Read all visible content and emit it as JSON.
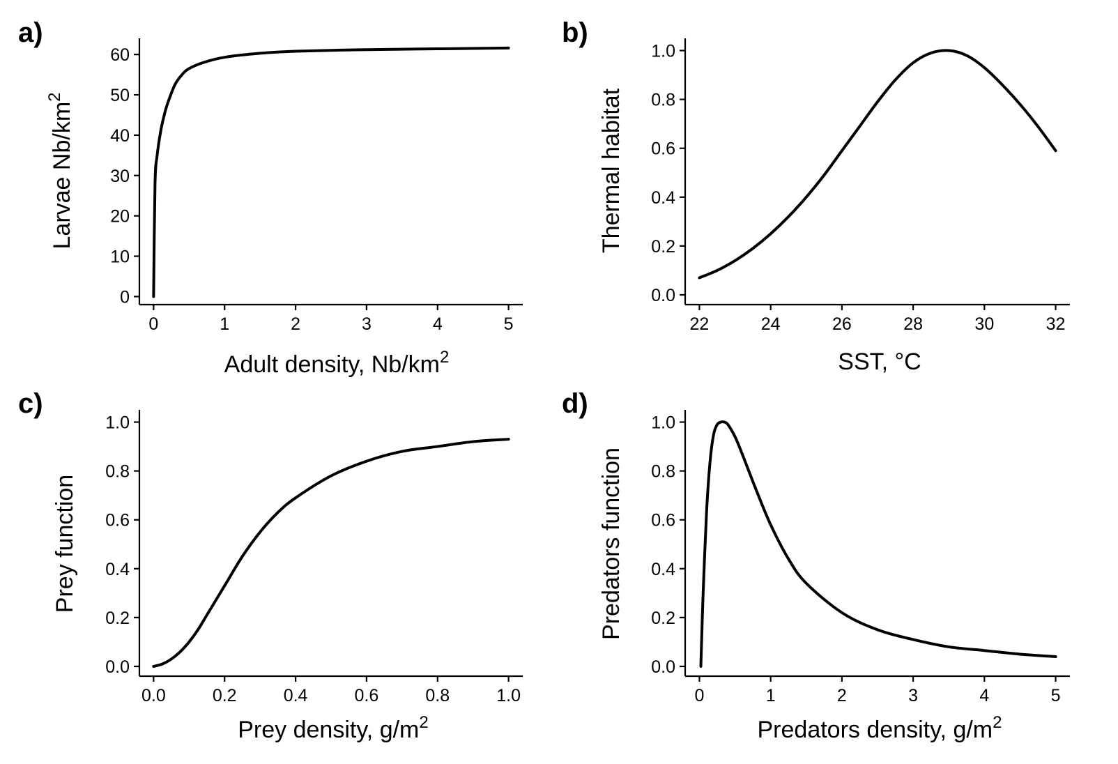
{
  "figure": {
    "panels": [
      {
        "letter": "a)",
        "xlabel": "Adult density, Nb/km",
        "xlabel_sup": "2",
        "ylabel": "Larvae Nb/km",
        "ylabel_sup": "2"
      },
      {
        "letter": "b)",
        "xlabel": "SST, °C",
        "xlabel_sup": "",
        "ylabel": "Thermal habitat",
        "ylabel_sup": ""
      },
      {
        "letter": "c)",
        "xlabel": "Prey density, g/m",
        "xlabel_sup": "2",
        "ylabel": "Prey function",
        "ylabel_sup": ""
      },
      {
        "letter": "d)",
        "xlabel": "Predators density, g/m",
        "xlabel_sup": "2",
        "ylabel": "Predators function",
        "ylabel_sup": ""
      }
    ]
  },
  "chart_data": [
    {
      "type": "line",
      "title": "",
      "xlabel": "Adult density, Nb/km2",
      "ylabel": "Larvae Nb/km2",
      "xlim": [
        -0.2,
        5.2
      ],
      "ylim": [
        -2,
        64
      ],
      "xticks": [
        0,
        1,
        2,
        3,
        4,
        5
      ],
      "xtick_labels": [
        "0",
        "1",
        "2",
        "3",
        "4",
        "5"
      ],
      "yticks": [
        0,
        10,
        20,
        30,
        40,
        50,
        60
      ],
      "ytick_labels": [
        "0",
        "10",
        "20",
        "30",
        "40",
        "50",
        "60"
      ],
      "grid": false,
      "series": [
        {
          "x": [
            0,
            0.02,
            0.05,
            0.1,
            0.15,
            0.2,
            0.3,
            0.4,
            0.5,
            0.7,
            1,
            1.5,
            2,
            3,
            4,
            5
          ],
          "y": [
            0,
            28,
            35,
            41,
            45,
            48,
            52.5,
            55,
            56.5,
            58,
            59.3,
            60.3,
            60.8,
            61.2,
            61.4,
            61.6
          ]
        }
      ]
    },
    {
      "type": "line",
      "title": "",
      "xlabel": "SST, °C",
      "ylabel": "Thermal habitat",
      "xlim": [
        21.6,
        32.4
      ],
      "ylim": [
        -0.04,
        1.05
      ],
      "xticks": [
        22,
        24,
        26,
        28,
        30,
        32
      ],
      "xtick_labels": [
        "22",
        "24",
        "26",
        "28",
        "30",
        "32"
      ],
      "yticks": [
        0,
        0.2,
        0.4,
        0.6,
        0.8,
        1.0
      ],
      "ytick_labels": [
        "0.0",
        "0.2",
        "0.4",
        "0.6",
        "0.8",
        "1.0"
      ],
      "grid": false,
      "series": [
        {
          "x": [
            22,
            22.5,
            23,
            23.5,
            24,
            24.5,
            25,
            25.5,
            26,
            26.5,
            27,
            27.5,
            28,
            28.5,
            29,
            29.5,
            30,
            30.5,
            31,
            31.5,
            32
          ],
          "y": [
            0.07,
            0.1,
            0.14,
            0.19,
            0.25,
            0.32,
            0.4,
            0.49,
            0.59,
            0.69,
            0.79,
            0.88,
            0.95,
            0.99,
            1.0,
            0.98,
            0.93,
            0.86,
            0.78,
            0.69,
            0.59
          ]
        }
      ]
    },
    {
      "type": "line",
      "title": "",
      "xlabel": "Prey density, g/m2",
      "ylabel": "Prey function",
      "xlim": [
        -0.04,
        1.04
      ],
      "ylim": [
        -0.04,
        1.05
      ],
      "xticks": [
        0,
        0.2,
        0.4,
        0.6,
        0.8,
        1.0
      ],
      "xtick_labels": [
        "0.0",
        "0.2",
        "0.4",
        "0.6",
        "0.8",
        "1.0"
      ],
      "yticks": [
        0,
        0.2,
        0.4,
        0.6,
        0.8,
        1.0
      ],
      "ytick_labels": [
        "0.0",
        "0.2",
        "0.4",
        "0.6",
        "0.8",
        "1.0"
      ],
      "grid": false,
      "series": [
        {
          "x": [
            0,
            0.025,
            0.05,
            0.075,
            0.1,
            0.125,
            0.15,
            0.2,
            0.25,
            0.3,
            0.35,
            0.4,
            0.5,
            0.6,
            0.7,
            0.8,
            0.9,
            1.0
          ],
          "y": [
            0,
            0.01,
            0.03,
            0.06,
            0.1,
            0.15,
            0.21,
            0.33,
            0.45,
            0.55,
            0.63,
            0.69,
            0.78,
            0.84,
            0.88,
            0.9,
            0.92,
            0.93
          ]
        }
      ]
    },
    {
      "type": "line",
      "title": "",
      "xlabel": "Predators density, g/m2",
      "ylabel": "Predators function",
      "xlim": [
        -0.2,
        5.2
      ],
      "ylim": [
        -0.04,
        1.05
      ],
      "xticks": [
        0,
        1,
        2,
        3,
        4,
        5
      ],
      "xtick_labels": [
        "0",
        "1",
        "2",
        "3",
        "4",
        "5"
      ],
      "yticks": [
        0,
        0.2,
        0.4,
        0.6,
        0.8,
        1.0
      ],
      "ytick_labels": [
        "0.0",
        "0.2",
        "0.4",
        "0.6",
        "0.8",
        "1.0"
      ],
      "grid": false,
      "series": [
        {
          "x": [
            0.02,
            0.05,
            0.1,
            0.15,
            0.2,
            0.25,
            0.3,
            0.35,
            0.4,
            0.5,
            0.6,
            0.8,
            1.0,
            1.25,
            1.5,
            2.0,
            2.5,
            3.0,
            3.5,
            4.0,
            4.5,
            5.0
          ],
          "y": [
            0.0,
            0.28,
            0.63,
            0.84,
            0.95,
            0.99,
            1.0,
            1.0,
            0.99,
            0.94,
            0.87,
            0.72,
            0.58,
            0.44,
            0.34,
            0.22,
            0.15,
            0.11,
            0.08,
            0.065,
            0.05,
            0.04
          ]
        }
      ]
    }
  ]
}
